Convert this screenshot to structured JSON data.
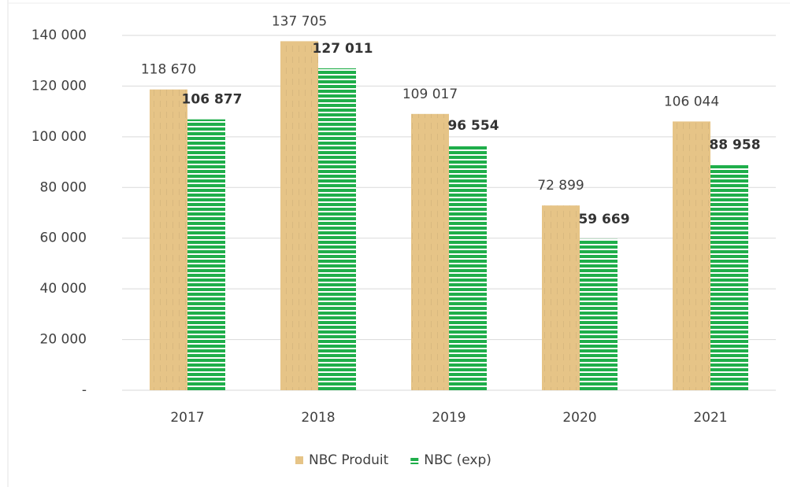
{
  "chart_data": {
    "type": "bar",
    "categories": [
      "2017",
      "2018",
      "2019",
      "2020",
      "2021"
    ],
    "series": [
      {
        "name": "NBC Produit",
        "color": "#e6c487",
        "values": [
          118670,
          137705,
          109017,
          72899,
          106044
        ],
        "value_labels": [
          "118 670",
          "137 705",
          "109 017",
          "72 899",
          "106 044"
        ]
      },
      {
        "name": "NBC (exp)",
        "color": "#1fae4a",
        "values": [
          106877,
          127011,
          96554,
          59669,
          88958
        ],
        "value_labels": [
          "106 877",
          "127 011",
          "96 554",
          "59 669",
          "88 958"
        ]
      }
    ],
    "ylim": [
      0,
      140000
    ],
    "yticks": [
      {
        "value": 0,
        "label": "-"
      },
      {
        "value": 20000,
        "label": "20 000"
      },
      {
        "value": 40000,
        "label": "40 000"
      },
      {
        "value": 60000,
        "label": "60 000"
      },
      {
        "value": 80000,
        "label": "80 000"
      },
      {
        "value": 100000,
        "label": "100 000"
      },
      {
        "value": 120000,
        "label": "120 000"
      },
      {
        "value": 140000,
        "label": "140 000"
      }
    ],
    "grid": true,
    "legend": "bottom"
  }
}
